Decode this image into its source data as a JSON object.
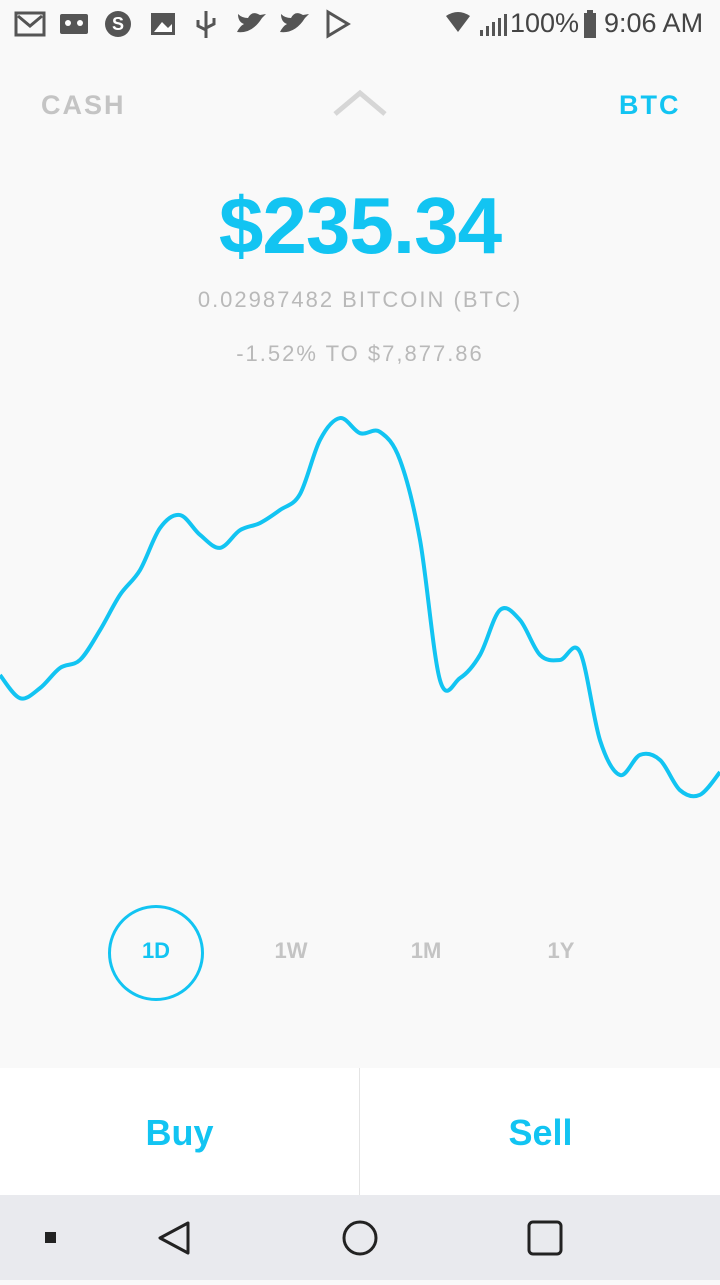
{
  "status_bar": {
    "battery": "100%",
    "time": "9:06 AM"
  },
  "header": {
    "left_tab": "CASH",
    "right_tab": "BTC"
  },
  "balance": {
    "amount": "$235.34",
    "holdings": "0.02987482 BITCOIN (BTC)",
    "change": "-1.52% TO $7,877.86"
  },
  "chart_data": {
    "type": "line",
    "color": "#12c4f2",
    "ylim": [
      0,
      100
    ],
    "values": [
      34.5,
      29.0,
      31.4,
      36.2,
      38.1,
      45.2,
      53.6,
      59.5,
      69.5,
      72.6,
      67.9,
      64.8,
      69.0,
      70.7,
      73.8,
      77.6,
      90.5,
      95.7,
      92.1,
      92.4,
      85.7,
      66.7,
      33.3,
      33.8,
      39.3,
      50.0,
      47.6,
      39.3,
      38.1,
      40.0,
      19.0,
      10.7,
      15.5,
      14.3,
      7.1,
      6.0,
      11.4
    ]
  },
  "ranges": {
    "options": [
      "1D",
      "1W",
      "1M",
      "1Y"
    ],
    "selected": 0
  },
  "actions": {
    "buy": "Buy",
    "sell": "Sell"
  }
}
